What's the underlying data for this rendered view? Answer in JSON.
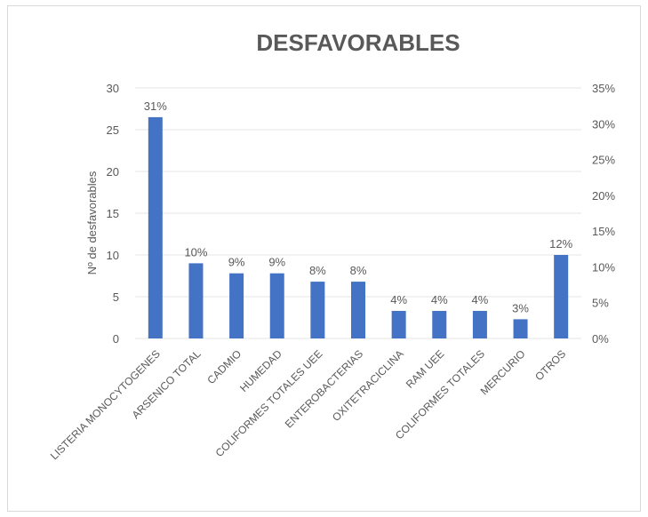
{
  "chart_data": {
    "type": "bar",
    "title": "DESFAVORABLES",
    "ylabel": "Nº de desfavorables",
    "xlabel": "",
    "ylim": [
      0,
      30
    ],
    "y_ticks": [
      "0",
      "5",
      "10",
      "15",
      "20",
      "25",
      "30"
    ],
    "y2lim": [
      0,
      35
    ],
    "y2_ticks": [
      "0%",
      "5%",
      "10%",
      "15%",
      "20%",
      "25%",
      "30%",
      "35%"
    ],
    "grid": true,
    "categories": [
      "LISTERIA MONOCYTOGENES",
      "ARSENICO TOTAL",
      "CADMIO",
      "HUMEDAD",
      "COLIFORMES TOTALES UEE",
      "ENTEROBACTERIAS",
      "OXITETRACICLINA",
      "RAM UEE",
      "COLIFORMES TOTALES",
      "MERCURIO",
      "OTROS"
    ],
    "values": [
      26.5,
      9,
      7.8,
      7.8,
      6.8,
      6.8,
      3.3,
      3.3,
      3.3,
      2.3,
      10
    ],
    "labels": [
      "31%",
      "10%",
      "9%",
      "9%",
      "8%",
      "8%",
      "4%",
      "4%",
      "4%",
      "3%",
      "12%"
    ],
    "bar_color": "#4472c4"
  }
}
